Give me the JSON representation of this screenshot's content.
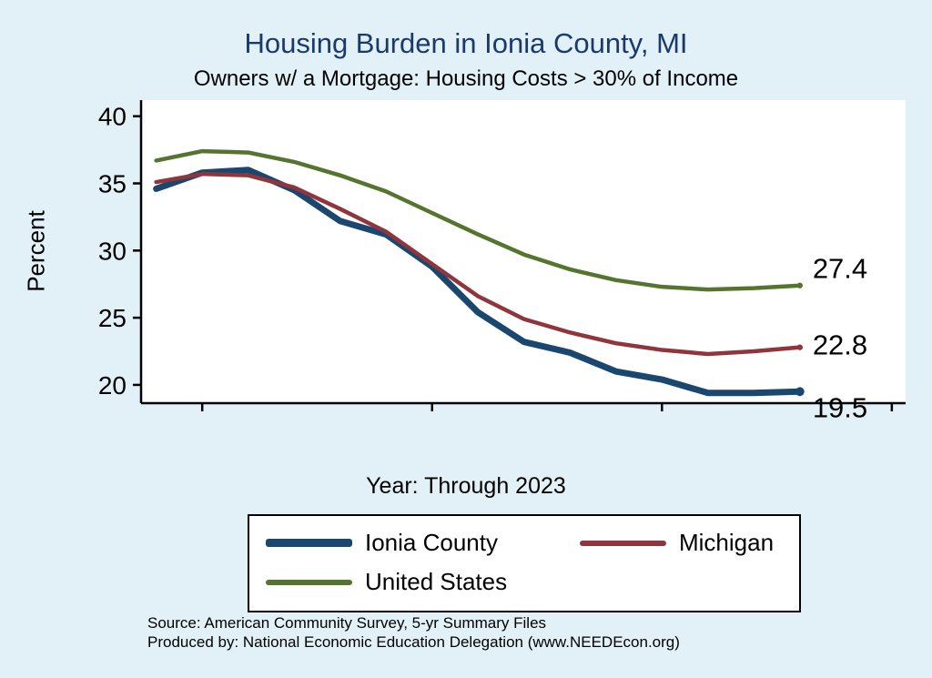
{
  "chart_data": {
    "type": "line",
    "title": "Housing Burden in Ionia County, MI",
    "subtitle": "Owners w/ a Mortgage: Housing Costs > 30% of Income",
    "xlabel": "Year: Through 2023",
    "ylabel": "Percent",
    "x": [
      9,
      10,
      11,
      12,
      13,
      14,
      15,
      16,
      17,
      18,
      19,
      20,
      21,
      22,
      23
    ],
    "xticks": [
      10,
      15,
      20,
      25
    ],
    "yticks": [
      20,
      25,
      30,
      35,
      40
    ],
    "xlim": [
      8.67,
      25.3
    ],
    "ylim": [
      18.64,
      41.2
    ],
    "grid": false,
    "legend_position": "bottom",
    "series": [
      {
        "name": "Ionia County",
        "color": "#1a476f",
        "width": 7,
        "values": [
          34.6,
          35.8,
          36.0,
          34.5,
          32.2,
          31.2,
          28.8,
          25.4,
          23.2,
          22.4,
          21.0,
          20.4,
          19.4,
          19.4,
          19.5
        ],
        "end_label": "19.5"
      },
      {
        "name": "Michigan",
        "color": "#90353b",
        "width": 4.5,
        "values": [
          35.1,
          35.7,
          35.6,
          34.7,
          33.1,
          31.4,
          29.0,
          26.6,
          24.9,
          23.9,
          23.1,
          22.6,
          22.3,
          22.5,
          22.8
        ],
        "end_label": "22.8"
      },
      {
        "name": "United States",
        "color": "#55752f",
        "width": 4.5,
        "values": [
          36.7,
          37.4,
          37.3,
          36.6,
          35.6,
          34.4,
          32.8,
          31.2,
          29.7,
          28.6,
          27.8,
          27.3,
          27.1,
          27.2,
          27.4
        ],
        "end_label": "27.4"
      }
    ]
  },
  "footer": {
    "source": "Source: American Community Survey, 5-yr Summary Files",
    "produced_by": "Produced by: National Economic Education Delegation (www.NEEDEcon.org)"
  }
}
